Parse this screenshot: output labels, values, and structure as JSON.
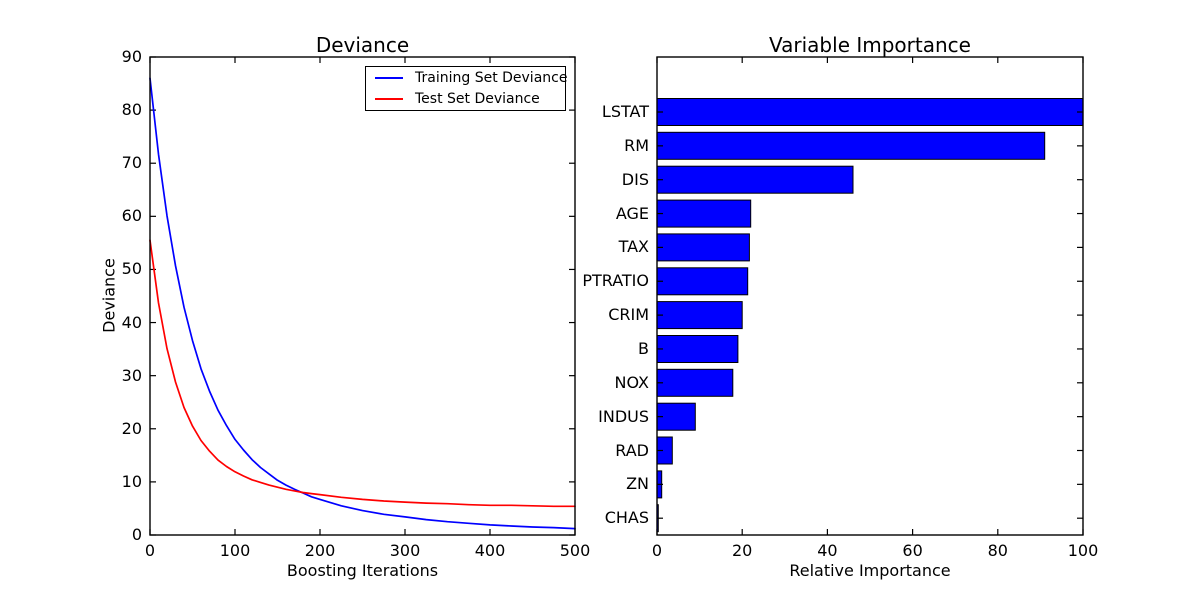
{
  "figure": {
    "background": "#ffffff",
    "spine_color": "#000000"
  },
  "chart_data": [
    {
      "type": "line",
      "title": "Deviance",
      "xlabel": "Boosting Iterations",
      "ylabel": "Deviance",
      "xlim": [
        0,
        500
      ],
      "ylim": [
        0,
        90
      ],
      "xticks": [
        0,
        100,
        200,
        300,
        400,
        500
      ],
      "yticks": [
        0,
        10,
        20,
        30,
        40,
        50,
        60,
        70,
        80,
        90
      ],
      "grid": false,
      "legend_position": "upper right",
      "series": [
        {
          "name": "Training Set Deviance",
          "color": "#0000ff",
          "x": [
            0,
            10,
            20,
            30,
            40,
            50,
            60,
            70,
            80,
            90,
            100,
            110,
            120,
            130,
            140,
            150,
            160,
            170,
            180,
            190,
            200,
            225,
            250,
            275,
            300,
            325,
            350,
            375,
            400,
            425,
            450,
            475,
            500
          ],
          "y": [
            86,
            71.7,
            60.1,
            50.7,
            42.9,
            36.6,
            31.3,
            27.1,
            23.5,
            20.6,
            18,
            16,
            14.2,
            12.7,
            11.5,
            10.3,
            9.4,
            8.6,
            7.9,
            7.2,
            6.7,
            5.5,
            4.6,
            3.9,
            3.4,
            2.9,
            2.5,
            2.2,
            1.9,
            1.7,
            1.5,
            1.4,
            1.2
          ]
        },
        {
          "name": "Test Set Deviance",
          "color": "#ff0000",
          "x": [
            0,
            10,
            20,
            30,
            40,
            50,
            60,
            70,
            80,
            90,
            100,
            110,
            120,
            130,
            140,
            150,
            160,
            170,
            180,
            190,
            200,
            225,
            250,
            275,
            300,
            325,
            350,
            375,
            400,
            425,
            450,
            475,
            500
          ],
          "y": [
            55.5,
            43.7,
            35.1,
            28.8,
            24,
            20.5,
            17.8,
            15.8,
            14.1,
            12.9,
            11.9,
            11.1,
            10.4,
            9.9,
            9.4,
            9,
            8.6,
            8.3,
            8,
            7.8,
            7.6,
            7.1,
            6.7,
            6.4,
            6.2,
            6,
            5.9,
            5.7,
            5.6,
            5.6,
            5.5,
            5.4,
            5.4
          ]
        }
      ]
    },
    {
      "type": "bar",
      "orientation": "horizontal",
      "title": "Variable Importance",
      "xlabel": "Relative Importance",
      "ylabel": "",
      "xlim": [
        0,
        100
      ],
      "xticks": [
        0,
        20,
        40,
        60,
        80,
        100
      ],
      "grid": false,
      "categories": [
        "LSTAT",
        "RM",
        "DIS",
        "AGE",
        "TAX",
        "PTRATIO",
        "CRIM",
        "B",
        "NOX",
        "INDUS",
        "RAD",
        "ZN",
        "CHAS"
      ],
      "values": [
        100,
        91,
        46,
        22,
        21.7,
        21.3,
        20,
        19,
        17.8,
        9,
        3.6,
        1.1,
        0.3
      ],
      "bar_color": "#0000ff",
      "bar_edge_color": "#000000"
    }
  ]
}
